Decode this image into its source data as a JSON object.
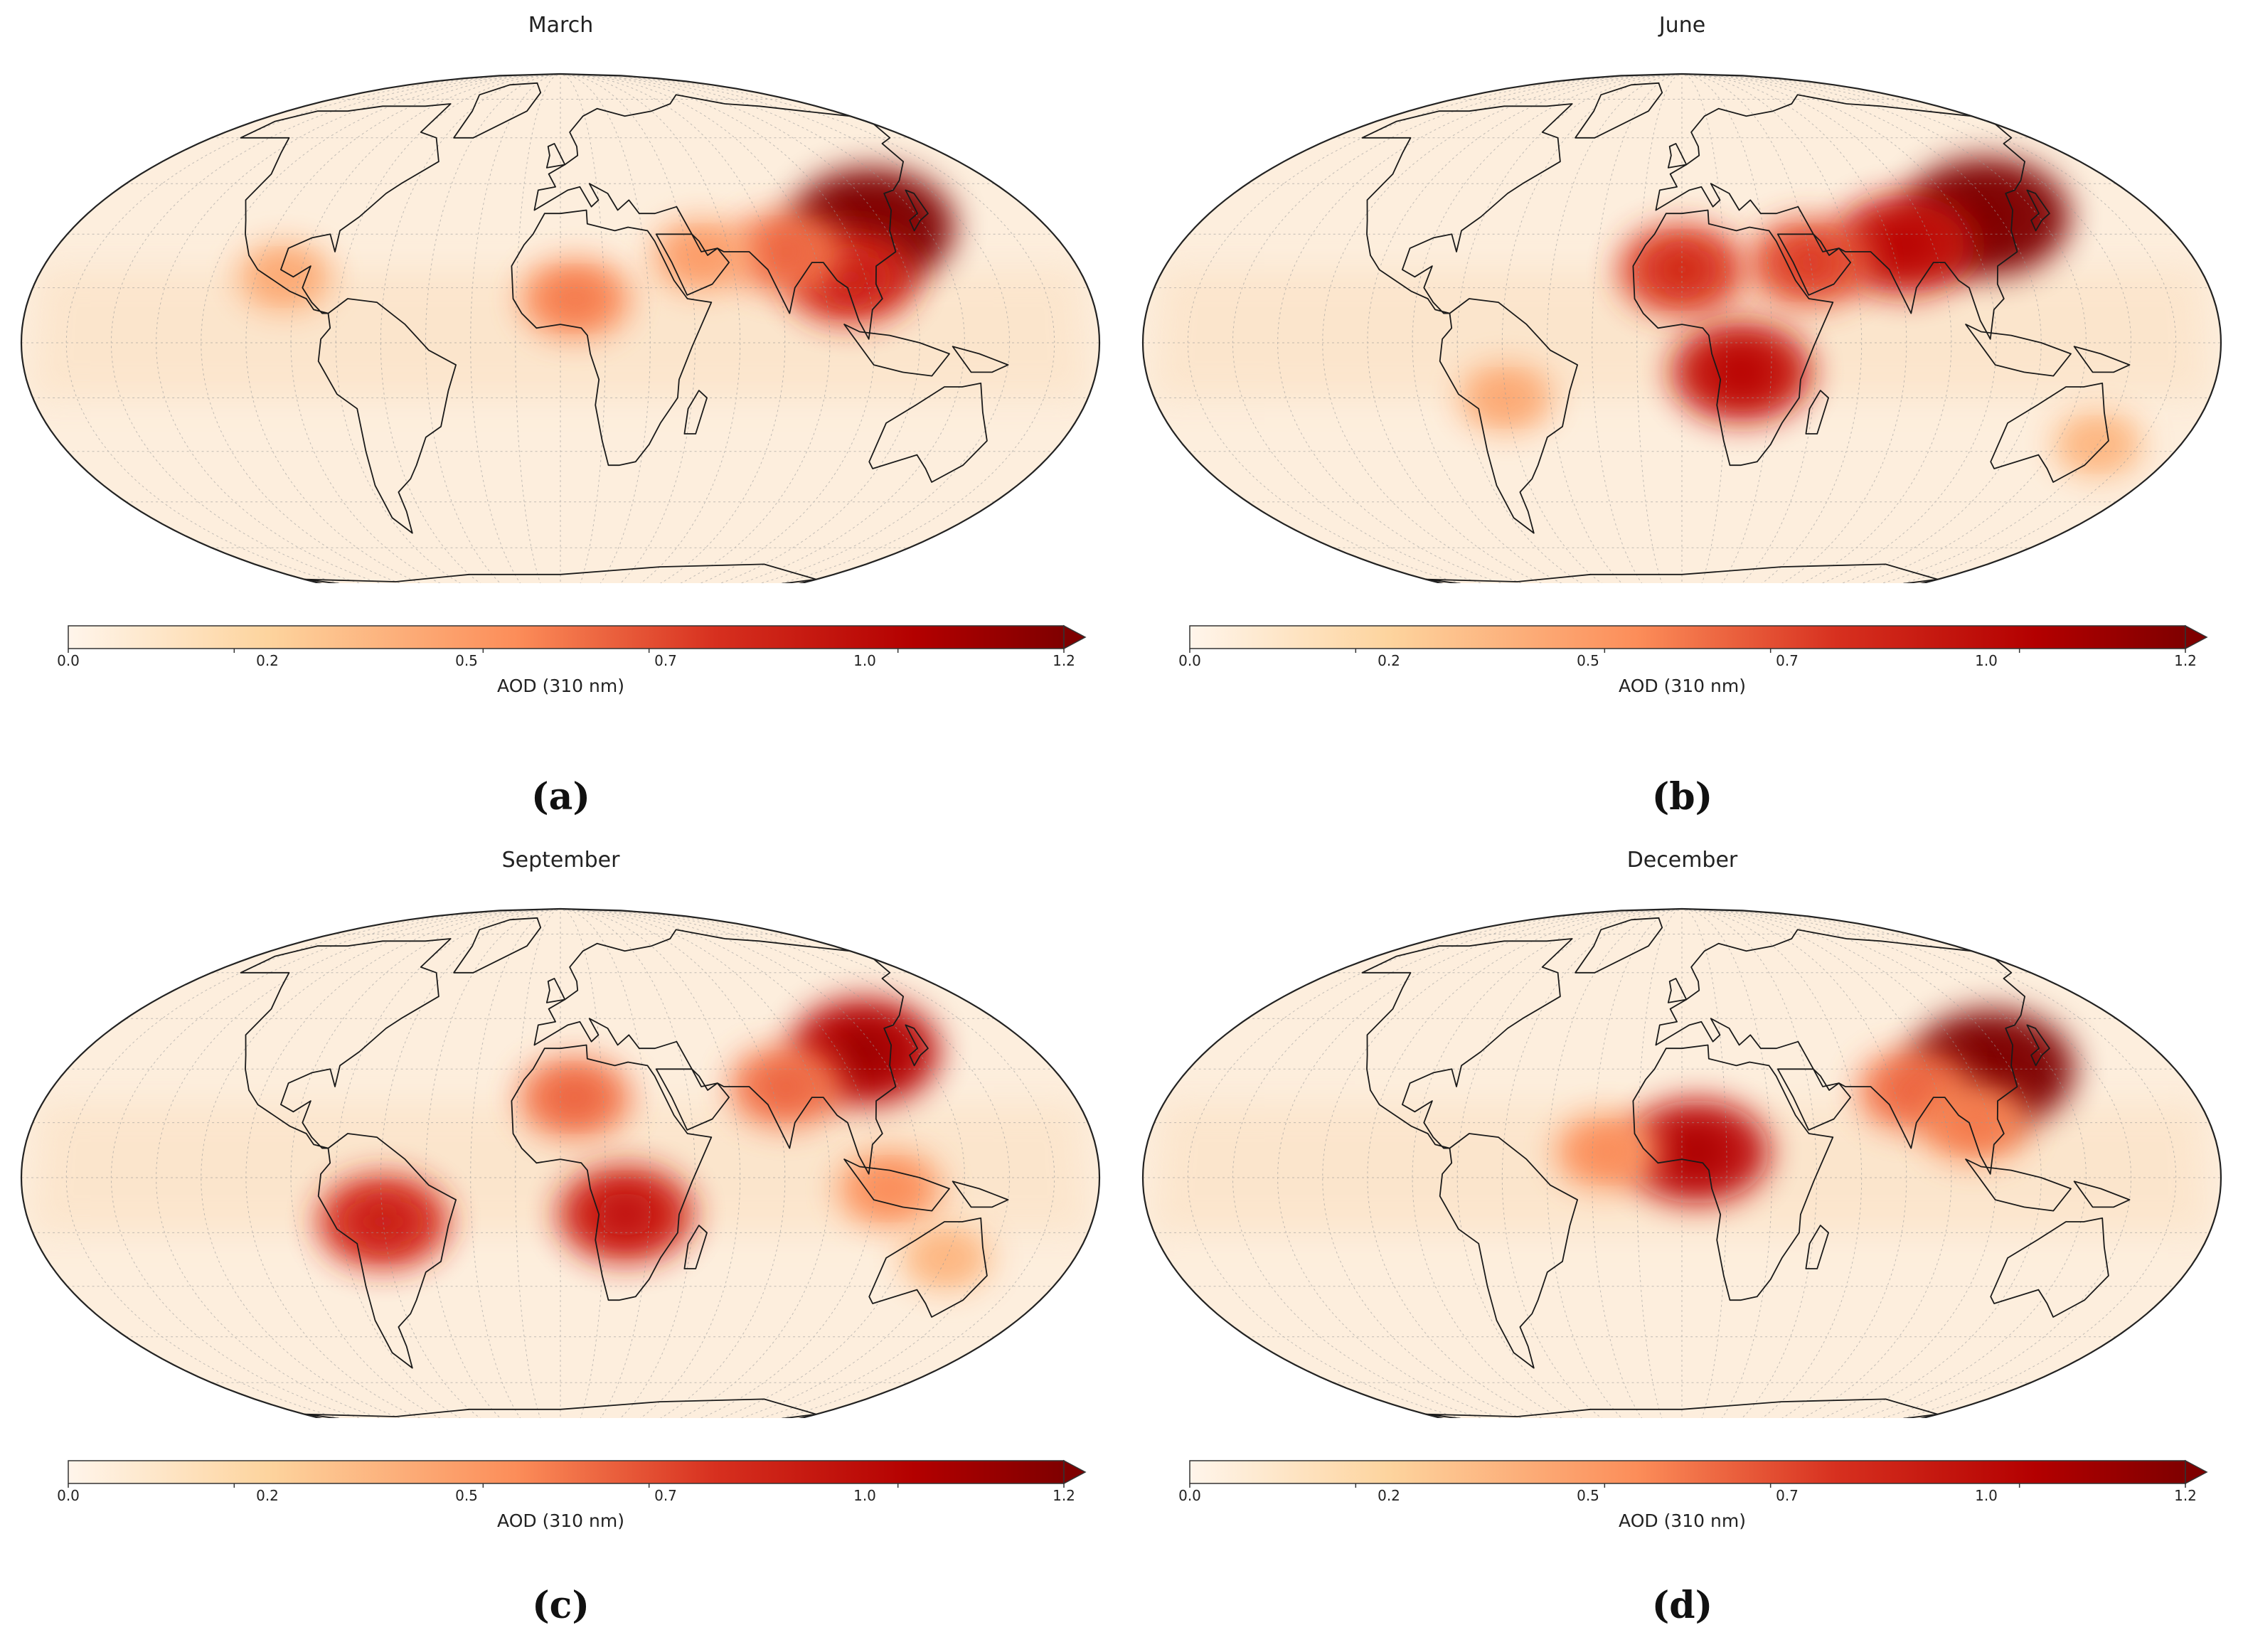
{
  "figure": {
    "panels": [
      {
        "letter": "(a)",
        "title": "March"
      },
      {
        "letter": "(b)",
        "title": "June"
      },
      {
        "letter": "(c)",
        "title": "September"
      },
      {
        "letter": "(d)",
        "title": "December"
      }
    ],
    "colorbar": {
      "label": "AOD (310 nm)",
      "ticks": [
        "0.0",
        "0.2",
        "0.5",
        "0.7",
        "1.0",
        "1.2"
      ],
      "tick_values": [
        0.0,
        0.2,
        0.5,
        0.7,
        1.0,
        1.2
      ],
      "range": [
        0.0,
        1.2
      ],
      "extend": "max",
      "colors": [
        "#fff5eb",
        "#fdd49e",
        "#fc8d59",
        "#d7301f",
        "#b30000",
        "#7f0000"
      ]
    }
  },
  "map": {
    "projection": "Mollweide",
    "background_color": "#fdeedd",
    "hotspots": {
      "March": [
        {
          "region": "East China",
          "lon": 115,
          "lat": 32,
          "aod": 1.2
        },
        {
          "region": "Southeast Asia",
          "lon": 100,
          "lat": 18,
          "aod": 0.8
        },
        {
          "region": "India",
          "lon": 80,
          "lat": 25,
          "aod": 0.6
        },
        {
          "region": "West Africa Sahel",
          "lon": 5,
          "lat": 12,
          "aod": 0.55
        },
        {
          "region": "Central America",
          "lon": -95,
          "lat": 18,
          "aod": 0.4
        },
        {
          "region": "Arabia",
          "lon": 50,
          "lat": 24,
          "aod": 0.45
        }
      ],
      "June": [
        {
          "region": "East China",
          "lon": 115,
          "lat": 35,
          "aod": 1.2
        },
        {
          "region": "North India",
          "lon": 80,
          "lat": 27,
          "aod": 0.9
        },
        {
          "region": "Sahara",
          "lon": 0,
          "lat": 20,
          "aod": 0.75
        },
        {
          "region": "Arabia",
          "lon": 45,
          "lat": 22,
          "aod": 0.7
        },
        {
          "region": "Central Africa",
          "lon": 20,
          "lat": -8,
          "aod": 0.9
        },
        {
          "region": "South America",
          "lon": -60,
          "lat": -15,
          "aod": 0.4
        },
        {
          "region": "Australia East",
          "lon": 150,
          "lat": -28,
          "aod": 0.35
        }
      ],
      "September": [
        {
          "region": "Amazon",
          "lon": -60,
          "lat": -12,
          "aod": 0.8
        },
        {
          "region": "Southern Africa",
          "lon": 22,
          "lat": -10,
          "aod": 0.85
        },
        {
          "region": "Sahara",
          "lon": 5,
          "lat": 22,
          "aod": 0.6
        },
        {
          "region": "East China",
          "lon": 115,
          "lat": 35,
          "aod": 1.0
        },
        {
          "region": "India",
          "lon": 80,
          "lat": 25,
          "aod": 0.6
        },
        {
          "region": "Indonesia",
          "lon": 110,
          "lat": -3,
          "aod": 0.5
        },
        {
          "region": "Australia",
          "lon": 135,
          "lat": -22,
          "aod": 0.35
        }
      ],
      "December": [
        {
          "region": "East China",
          "lon": 113,
          "lat": 30,
          "aod": 1.2
        },
        {
          "region": "West Africa Gulf of Guinea",
          "lon": 5,
          "lat": 7,
          "aod": 0.95
        },
        {
          "region": "India",
          "lon": 82,
          "lat": 24,
          "aod": 0.6
        },
        {
          "region": "Southeast Asia",
          "lon": 100,
          "lat": 15,
          "aod": 0.55
        },
        {
          "region": "Tropical Atlantic",
          "lon": -25,
          "lat": 7,
          "aod": 0.5
        }
      ]
    }
  }
}
